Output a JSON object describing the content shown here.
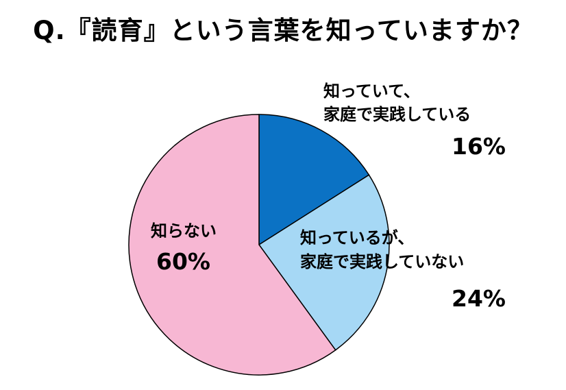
{
  "title": "Q.『読育』という言葉を知っていますか？",
  "chart_data": {
    "type": "pie",
    "title": "Q.『読育』という言葉を知っていますか？",
    "start_angle_deg": 0,
    "direction": "clockwise",
    "slices": [
      {
        "label_lines": [
          "知っていて、",
          "家庭で実践している"
        ],
        "value": 16,
        "value_label": "16%",
        "color": "#0B72C4"
      },
      {
        "label_lines": [
          "知っているが、",
          "家庭で実践していない"
        ],
        "value": 24,
        "value_label": "24%",
        "color": "#A6D8F5"
      },
      {
        "label_lines": [
          "知らない"
        ],
        "value": 60,
        "value_label": "60%",
        "color": "#F7B7D3"
      }
    ],
    "stroke_color": "#000000"
  }
}
